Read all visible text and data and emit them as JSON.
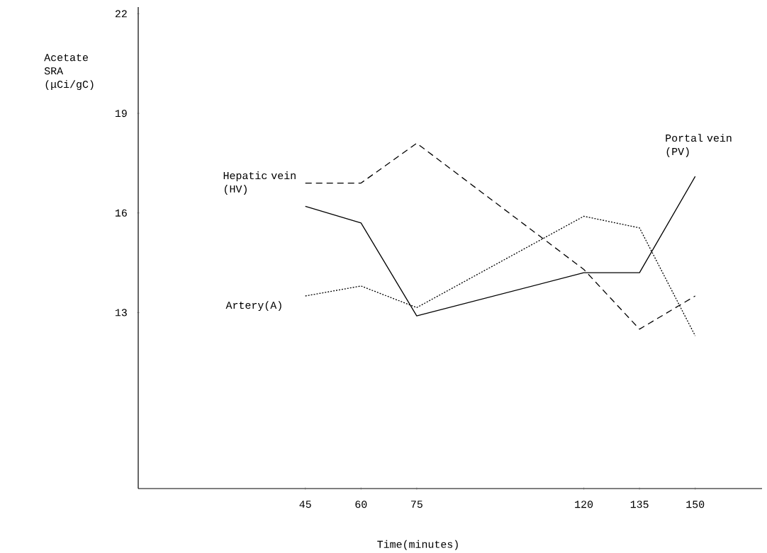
{
  "chart_data": {
    "type": "line",
    "xlabel": "Time(minutes)",
    "ylabel": "Acetate SRA (μCi/gC)",
    "x": [
      45,
      60,
      75,
      120,
      135,
      150
    ],
    "xlim": [
      0,
      168
    ],
    "ylim": [
      7.7,
      22.2
    ],
    "xticks": [
      45,
      60,
      75,
      120,
      135,
      150
    ],
    "yticks": [
      13,
      16,
      19,
      22
    ],
    "grid": false,
    "series": [
      {
        "name": "Portal vein (PV)",
        "color": "#000000",
        "line_style": "solid",
        "values": [
          16.2,
          15.7,
          12.9,
          14.2,
          14.2,
          17.1
        ]
      },
      {
        "name": "Hepatic vein (HV)",
        "color": "#000000",
        "line_style": "dashed",
        "values": [
          16.9,
          16.9,
          18.1,
          14.3,
          12.5,
          13.5
        ]
      },
      {
        "name": "Artery(A)",
        "color": "#000000",
        "line_style": "dotted",
        "values": [
          13.5,
          13.8,
          13.15,
          15.9,
          15.55,
          12.3
        ]
      }
    ]
  }
}
